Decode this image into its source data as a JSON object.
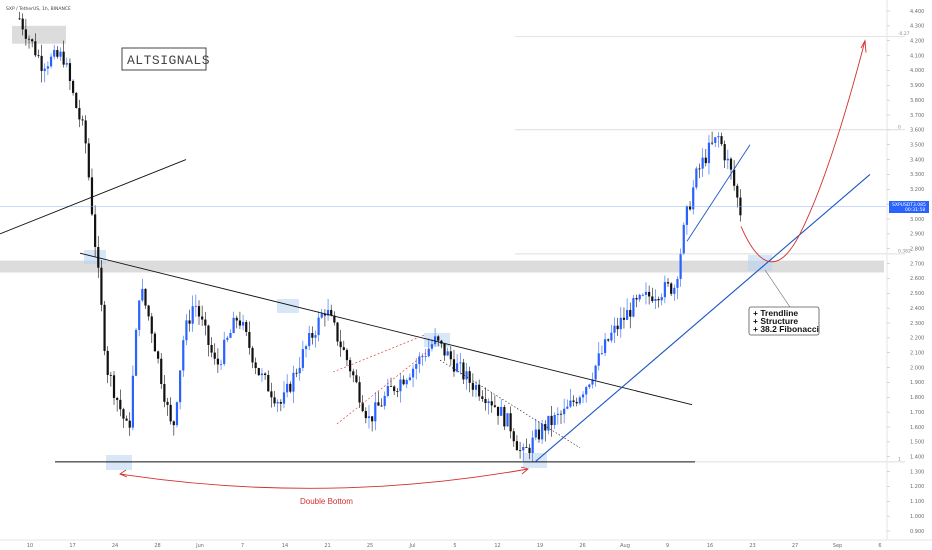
{
  "header": {
    "symbol": "SXP / TetherUS, 1h, BINANCE"
  },
  "brand": "ALTSIGNALS",
  "price_tag": {
    "symbol": "SXPUSDT",
    "price": "3.085",
    "countdown": "00:31:58"
  },
  "annotations": {
    "double_bottom": "Double Bottom",
    "confluence": [
      "+ Trendline",
      "+ Structure",
      "+ 38.2 Fibonacci"
    ]
  },
  "fib_labels": [
    {
      "label": "-0.27",
      "value": 4.23
    },
    {
      "label": "0",
      "value": 3.6
    },
    {
      "label": "0.382",
      "value": 2.765
    },
    {
      "label": "1",
      "value": 1.365
    }
  ],
  "colors": {
    "up": "#2962ff",
    "down": "#111111",
    "trendline_blue": "#1e56c6",
    "projection_red": "#d32f2f",
    "zone": "#dcdcdc",
    "highlight": "#b7d3f2"
  },
  "chart_data": {
    "type": "candlestick",
    "title": "",
    "xlabel": "",
    "ylabel": "",
    "ylim": [
      0.82,
      4.45
    ],
    "y_ticks": [
      "4.400",
      "4.300",
      "4.200",
      "4.100",
      "4.000",
      "3.900",
      "3.800",
      "3.700",
      "3.600",
      "3.500",
      "3.400",
      "3.300",
      "3.200",
      "3.100",
      "3.000",
      "2.900",
      "2.800",
      "2.700",
      "2.600",
      "2.500",
      "2.400",
      "2.300",
      "2.200",
      "2.100",
      "2.000",
      "1.900",
      "1.800",
      "1.700",
      "1.600",
      "1.500",
      "1.400",
      "1.300",
      "1.200",
      "1.100",
      "1.000",
      "0.900"
    ],
    "x_ticks": [
      "10",
      "17",
      "24",
      "28",
      "Jun",
      "7",
      "14",
      "21",
      "25",
      "Jul",
      "5",
      "12",
      "19",
      "26",
      "Aug",
      "9",
      "16",
      "23",
      "27",
      "Sep",
      "6"
    ],
    "price_path": [
      {
        "x": 0,
        "y": 4.35
      },
      {
        "x": 2,
        "y": 4.05
      },
      {
        "x": 4,
        "y": 4.1
      },
      {
        "x": 5,
        "y": 3.8
      },
      {
        "x": 6,
        "y": 3.55
      },
      {
        "x": 8,
        "y": 2.0
      },
      {
        "x": 10,
        "y": 1.55
      },
      {
        "x": 11,
        "y": 2.55
      },
      {
        "x": 12,
        "y": 2.3
      },
      {
        "x": 14,
        "y": 1.55
      },
      {
        "x": 15,
        "y": 2.2
      },
      {
        "x": 16,
        "y": 2.45
      },
      {
        "x": 18,
        "y": 2.0
      },
      {
        "x": 20,
        "y": 2.35
      },
      {
        "x": 22,
        "y": 1.95
      },
      {
        "x": 24,
        "y": 1.75
      },
      {
        "x": 26,
        "y": 2.1
      },
      {
        "x": 28,
        "y": 2.4
      },
      {
        "x": 30,
        "y": 2.05
      },
      {
        "x": 32,
        "y": 1.65
      },
      {
        "x": 34,
        "y": 1.85
      },
      {
        "x": 36,
        "y": 2.0
      },
      {
        "x": 38,
        "y": 2.18
      },
      {
        "x": 39,
        "y": 2.1
      },
      {
        "x": 41,
        "y": 1.92
      },
      {
        "x": 43,
        "y": 1.8
      },
      {
        "x": 45,
        "y": 1.6
      },
      {
        "x": 46,
        "y": 1.4
      },
      {
        "x": 48,
        "y": 1.6
      },
      {
        "x": 50,
        "y": 1.7
      },
      {
        "x": 52,
        "y": 1.9
      },
      {
        "x": 54,
        "y": 2.2
      },
      {
        "x": 56,
        "y": 2.4
      },
      {
        "x": 58,
        "y": 2.5
      },
      {
        "x": 60,
        "y": 2.55
      },
      {
        "x": 61,
        "y": 3.0
      },
      {
        "x": 62,
        "y": 3.3
      },
      {
        "x": 63,
        "y": 3.45
      },
      {
        "x": 64,
        "y": 3.55
      },
      {
        "x": 65,
        "y": 3.35
      },
      {
        "x": 66,
        "y": 3.05
      }
    ]
  }
}
